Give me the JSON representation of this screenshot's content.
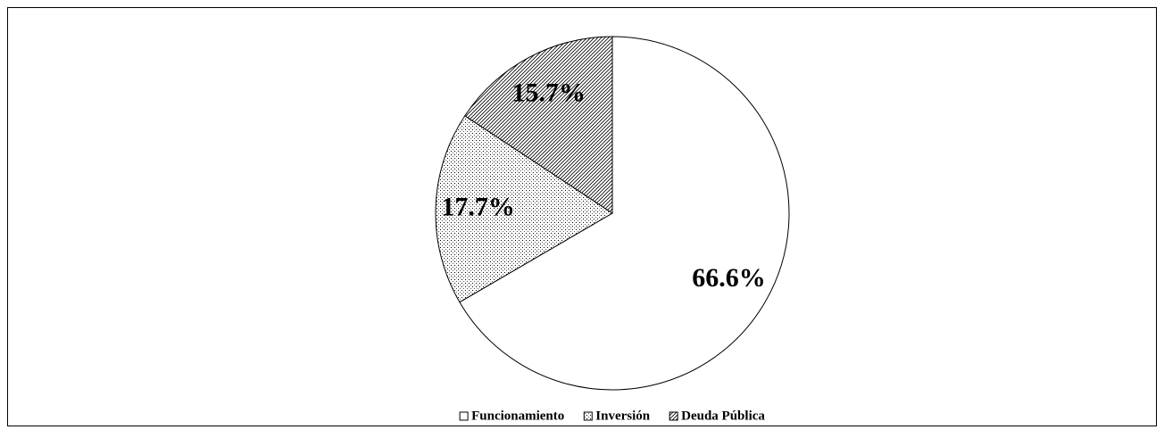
{
  "chart_data": {
    "type": "pie",
    "categories": [
      "Funcionamiento",
      "Inversión",
      "Deuda Pública"
    ],
    "values": [
      66.6,
      17.7,
      15.7
    ],
    "value_labels": [
      "66.6%",
      "17.7%",
      "15.7%"
    ],
    "patterns": [
      "none",
      "dots",
      "hatch"
    ],
    "legend": "bottom"
  }
}
